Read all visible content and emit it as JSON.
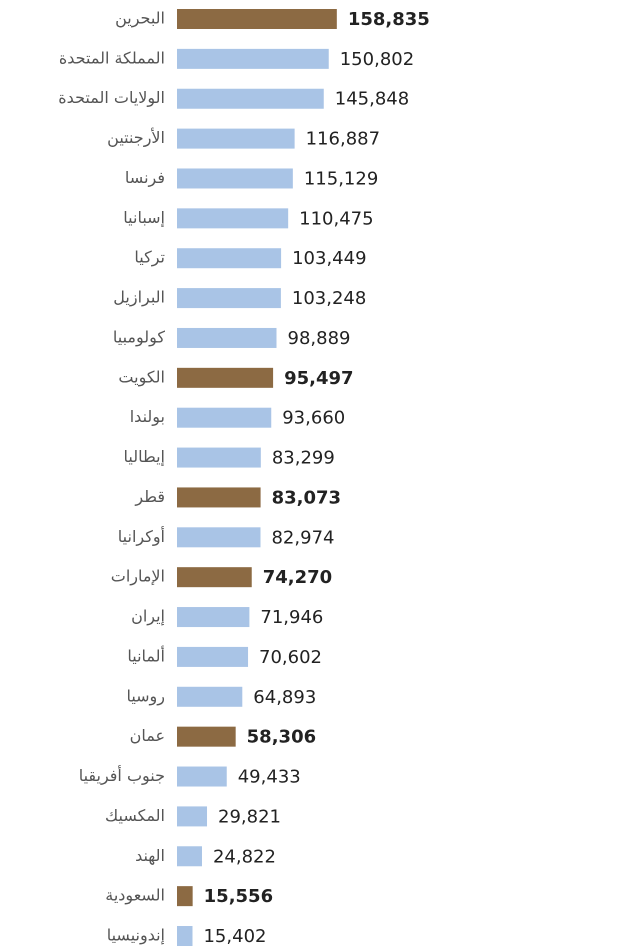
{
  "chart_data": {
    "type": "barh",
    "categories": [
      "البحرين",
      "المملكة المتحدة",
      "الولايات المتحدة",
      "الأرجنتين",
      "فرنسا",
      "إسبانيا",
      "تركيا",
      "البرازيل",
      "كولومبيا",
      "الكويت",
      "بولندا",
      "إيطاليا",
      "قطر",
      "أوكرانيا",
      "الإمارات",
      "إيران",
      "ألمانيا",
      "روسيا",
      "عمان",
      "جنوب أفريقيا",
      "المكسيك",
      "الهند",
      "السعودية",
      "إندونيسيا"
    ],
    "values": [
      158835,
      150802,
      145848,
      116887,
      115129,
      110475,
      103449,
      103248,
      98889,
      95497,
      93660,
      83299,
      83073,
      82974,
      74270,
      71946,
      70602,
      64893,
      58306,
      49433,
      29821,
      24822,
      15556,
      15402
    ],
    "value_labels": [
      "158,835",
      "150,802",
      "145,848",
      "116,887",
      "115,129",
      "110,475",
      "103,449",
      "103,248",
      "98,889",
      "95,497",
      "93,660",
      "83,299",
      "83,073",
      "82,974",
      "74,270",
      "71,946",
      "70,602",
      "64,893",
      "58,306",
      "49,433",
      "29,821",
      "24,822",
      "15,556",
      "15,402"
    ],
    "colors": [
      "#8c6a43",
      "#a9c4e6",
      "#a9c4e6",
      "#a9c4e6",
      "#a9c4e6",
      "#a9c4e6",
      "#a9c4e6",
      "#a9c4e6",
      "#a9c4e6",
      "#8c6a43",
      "#a9c4e6",
      "#a9c4e6",
      "#8c6a43",
      "#a9c4e6",
      "#8c6a43",
      "#a9c4e6",
      "#a9c4e6",
      "#a9c4e6",
      "#8c6a43",
      "#a9c4e6",
      "#a9c4e6",
      "#a9c4e6",
      "#8c6a43",
      "#a9c4e6"
    ],
    "xlim": [
      0,
      160000
    ]
  }
}
